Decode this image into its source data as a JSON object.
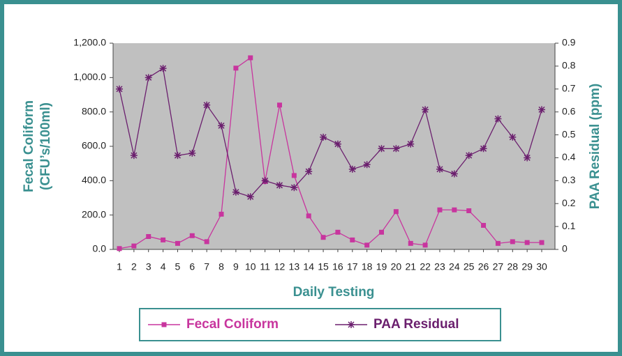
{
  "chart_data": {
    "type": "line",
    "categories": [
      "1",
      "2",
      "3",
      "4",
      "5",
      "6",
      "7",
      "8",
      "9",
      "10",
      "11",
      "12",
      "13",
      "14",
      "15",
      "16",
      "17",
      "18",
      "19",
      "20",
      "21",
      "22",
      "23",
      "24",
      "25",
      "26",
      "27",
      "28",
      "29",
      "30"
    ],
    "series": [
      {
        "name": "Fecal Coliform",
        "color": "#c8359e",
        "marker": "square",
        "axis": "y",
        "values": [
          5,
          20,
          75,
          55,
          35,
          80,
          45,
          205,
          1055,
          1115,
          395,
          840,
          430,
          195,
          70,
          100,
          55,
          25,
          100,
          220,
          35,
          25,
          230,
          230,
          225,
          140,
          35,
          45,
          40,
          40
        ]
      },
      {
        "name": "PAA Residual",
        "color": "#6b1f6e",
        "marker": "star",
        "axis": "y2",
        "values": [
          0.7,
          0.41,
          0.75,
          0.79,
          0.41,
          0.42,
          0.63,
          0.54,
          0.25,
          0.23,
          0.3,
          0.28,
          0.27,
          0.34,
          0.49,
          0.46,
          0.35,
          0.37,
          0.44,
          0.44,
          0.46,
          0.61,
          0.35,
          0.33,
          0.41,
          0.44,
          0.57,
          0.49,
          0.4,
          0.61
        ]
      }
    ],
    "x_label": "Daily Testing",
    "y_label": [
      "Fecal Coliform",
      "(CFU’s/100ml)"
    ],
    "y2_label": "PAA Residual (ppm)",
    "ylim": [
      0,
      1200
    ],
    "yticks": [
      {
        "value": 0,
        "label": "0.0"
      },
      {
        "value": 200,
        "label": "200.0"
      },
      {
        "value": 400,
        "label": "400.0"
      },
      {
        "value": 600,
        "label": "600.0"
      },
      {
        "value": 800,
        "label": "800.0"
      },
      {
        "value": 1000,
        "label": "1,000.0"
      },
      {
        "value": 1200,
        "label": "1,200.0"
      }
    ],
    "y2lim": [
      0,
      0.9
    ],
    "y2ticks": [
      0,
      0.1,
      0.2,
      0.3,
      0.4,
      0.5,
      0.6,
      0.7,
      0.8,
      0.9
    ],
    "grid": false,
    "legend": "bottom"
  }
}
